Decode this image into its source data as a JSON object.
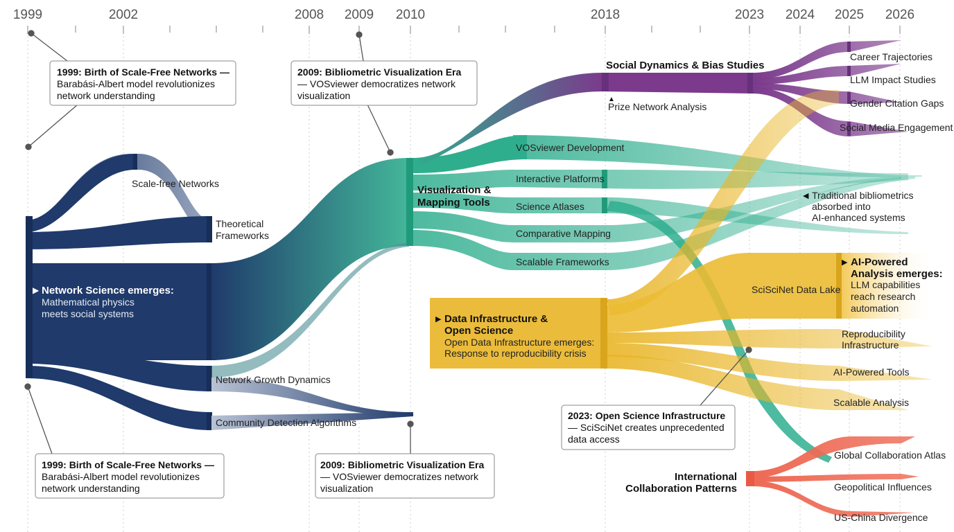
{
  "timeline": {
    "years": [
      {
        "label": "1999"
      },
      {
        "label": "2002"
      },
      {
        "label": "2008"
      },
      {
        "label": "2009"
      },
      {
        "label": "2010"
      },
      {
        "label": "2018"
      },
      {
        "label": "2023"
      },
      {
        "label": "2024"
      },
      {
        "label": "2025"
      },
      {
        "label": "2026"
      }
    ]
  },
  "colors": {
    "network": "#1f3a6b",
    "visualization": "#2fae8e",
    "social": "#7b3a8c",
    "data": "#e9b526",
    "collaboration": "#ee6a55"
  },
  "nodes": {
    "scale_free": "Scale-free Networks",
    "theoretical_1": "Theoretical",
    "theoretical_2": "Frameworks",
    "network_science_title": "Network Science emerges:",
    "network_science_1": "Mathematical physics",
    "network_science_2": "meets social systems",
    "growth": "Network Growth Dynamics",
    "community": "Community Detection Algorithms",
    "viz_1": "Visualization &",
    "viz_2": "Mapping Tools",
    "vosviewer": "VOSviewer Development",
    "interactive": "Interactive Platforms",
    "atlases": "Science Atlases",
    "comparative": "Comparative Mapping",
    "scalable_frameworks": "Scalable Frameworks",
    "social": "Social Dynamics & Bias Studies",
    "prize": "Prize Network Analysis",
    "career": "Career Trajectories",
    "llm_impact": "LLM Impact Studies",
    "gender": "Gender Citation Gaps",
    "social_media": "Social Media Engagement",
    "traditional_1": "Traditional bibliometrics",
    "traditional_2": "absorbed into",
    "traditional_3": "AI-enhanced systems",
    "data_title_1": "Data Infrastructure &",
    "data_title_2": "Open Science",
    "data_1": "Open Data Infrastructure emerges:",
    "data_2": "Response to reproducibility crisis",
    "sciscinet": "SciSciNet Data Lake",
    "ai_title_1": "AI-Powered",
    "ai_title_2": "Analysis emerges:",
    "ai_1": "LLM capabilities",
    "ai_2": "reach research",
    "ai_3": "automation",
    "reproducibility_1": "Reproducibility",
    "reproducibility_2": "Infrastructure",
    "ai_tools": "AI-Powered Tools",
    "scalable_analysis": "Scalable Analysis",
    "intl_1": "International",
    "intl_2": "Collaboration Patterns",
    "global_atlas": "Global Collaboration Atlas",
    "geopolitical": "Geopolitical Influences",
    "us_china": "US-China Divergence"
  },
  "callouts": {
    "c1": {
      "title": "1999: Birth of Scale-Free Networks —",
      "l1": "Barabási-Albert model revolutionizes",
      "l2": "network understanding"
    },
    "c2": {
      "title": "2009: Bibliometric Visualization Era",
      "l1": "— VOSviewer democratizes network",
      "l2": "visualization"
    },
    "c3": {
      "title": "1999: Birth of Scale-Free Networks —",
      "l1": "Barabási-Albert model revolutionizes",
      "l2": "network understanding"
    },
    "c4": {
      "title": "2009: Bibliometric Visualization Era",
      "l1": "— VOSviewer democratizes network",
      "l2": "visualization"
    },
    "c5": {
      "title": "2023: Open Science Infrastructure",
      "l1": "— SciSciNet creates unprecedented",
      "l2": "data access"
    }
  }
}
